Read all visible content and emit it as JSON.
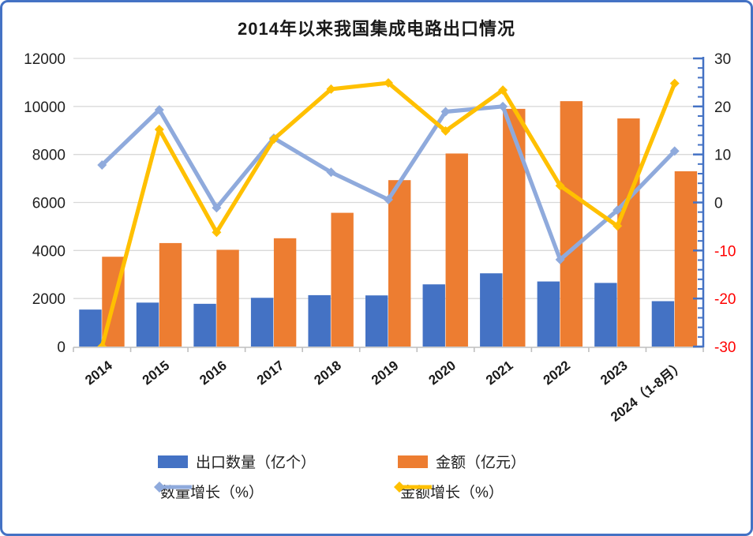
{
  "chart_data": {
    "type": "combo-bar-line",
    "title": "2014年以来我国集成电路出口情况",
    "categories": [
      "2014",
      "2015",
      "2016",
      "2017",
      "2018",
      "2019",
      "2020",
      "2021",
      "2022",
      "2023",
      "2024（1-8月）"
    ],
    "series": [
      {
        "name": "出口数量（亿个）",
        "type": "bar",
        "axis": "left",
        "color": "#4472C4",
        "values": [
          1540,
          1830,
          1780,
          2030,
          2140,
          2130,
          2590,
          3050,
          2710,
          2650,
          1890
        ]
      },
      {
        "name": "金额（亿元）",
        "type": "bar",
        "axis": "left",
        "color": "#ED7D31",
        "values": [
          3740,
          4310,
          4030,
          4510,
          5570,
          6930,
          8040,
          9900,
          10220,
          9500,
          7300
        ]
      },
      {
        "name": "数量增长（%）",
        "type": "line",
        "axis": "right",
        "color": "#8FAADC",
        "values": [
          7.8,
          19.3,
          -1.1,
          13.4,
          6.3,
          0.6,
          18.9,
          20.0,
          -11.9,
          -1.6,
          10.7
        ]
      },
      {
        "name": "金额增长（%）",
        "type": "line",
        "axis": "right",
        "color": "#FFC000",
        "values": [
          -30,
          15.2,
          -6.2,
          13.2,
          23.6,
          24.9,
          14.9,
          23.4,
          3.5,
          -4.9,
          24.8
        ]
      }
    ],
    "left_axis": {
      "min": 0,
      "max": 12000,
      "step": 2000,
      "tick_labels": [
        "0",
        "2000",
        "4000",
        "6000",
        "8000",
        "10000",
        "12000"
      ],
      "label_color": "#1f1f1f"
    },
    "right_axis": {
      "min": -30,
      "max": 30,
      "step": 10,
      "minor_step": 2,
      "tick_labels": [
        "-30",
        "-20",
        "-10",
        "0",
        "10",
        "20",
        "30"
      ],
      "label_color": "#1f1f1f",
      "negative_label_color": "#FF0000",
      "axis_color": "#4472C4"
    },
    "grid": true,
    "grid_color": "#D9D9D9",
    "x_axis_line_color": "#BFBFBF",
    "legend_position": "bottom"
  },
  "frame": {
    "border_color": "#4472C4",
    "background": "#FFFFFF"
  }
}
